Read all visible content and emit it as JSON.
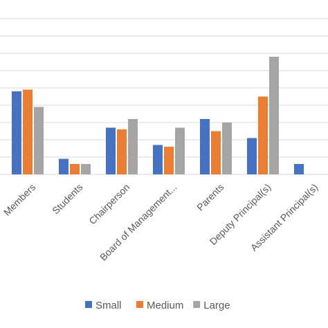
{
  "chart_data": {
    "type": "bar",
    "title": "",
    "xlabel": "",
    "ylabel": "",
    "ylim": [
      0,
      9
    ],
    "grid": true,
    "legend_position": "bottom",
    "categories": [
      "Members",
      "Students",
      "Chairperson",
      "Board of Management...",
      "Parents",
      "Deputy Principal(s)",
      "Assistant Principal(s)"
    ],
    "series": [
      {
        "name": "Small",
        "color": "#4472C4",
        "values": [
          4.8,
          0.9,
          2.7,
          1.7,
          3.2,
          2.1,
          0.6
        ]
      },
      {
        "name": "Medium",
        "color": "#ED7D31",
        "values": [
          4.9,
          0.6,
          2.6,
          1.6,
          2.5,
          4.5,
          null
        ]
      },
      {
        "name": "Large",
        "color": "#A5A5A5",
        "values": [
          3.9,
          0.6,
          3.2,
          2.7,
          3.0,
          6.8,
          null
        ]
      }
    ]
  }
}
